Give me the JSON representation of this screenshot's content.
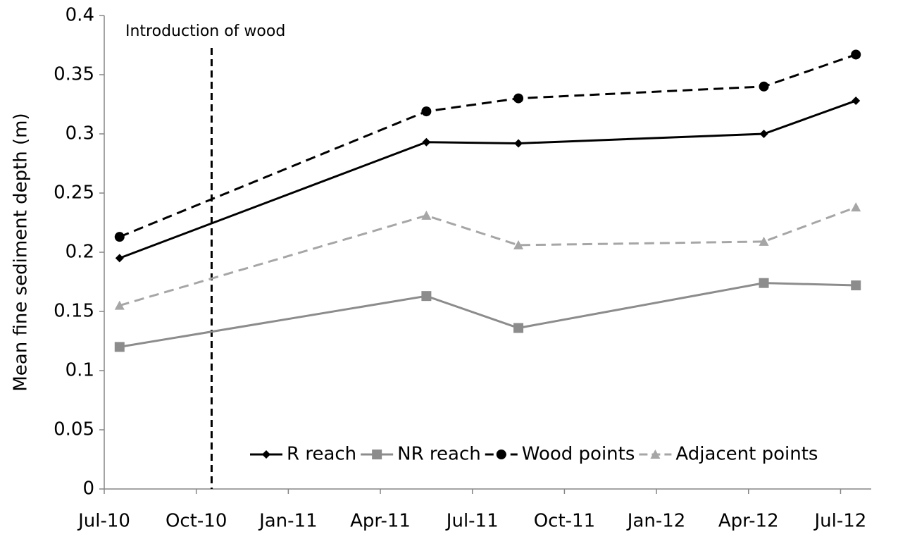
{
  "chart_data": {
    "type": "line",
    "y_label": "Mean fine sediment depth (m)",
    "annotation": {
      "text": "Introduction of wood",
      "x": "2010-10"
    },
    "x": [
      "2010-07",
      "2011-05",
      "2011-08",
      "2012-04",
      "2012-07"
    ],
    "xlim": [
      "2010-07",
      "2012-08"
    ],
    "xticks": [
      {
        "value": "2010-07",
        "label": "Jul-10"
      },
      {
        "value": "2010-10",
        "label": "Oct-10"
      },
      {
        "value": "2011-01",
        "label": "Jan-11"
      },
      {
        "value": "2011-04",
        "label": "Apr-11"
      },
      {
        "value": "2011-07",
        "label": "Jul-11"
      },
      {
        "value": "2011-10",
        "label": "Oct-11"
      },
      {
        "value": "2012-01",
        "label": "Jan-12"
      },
      {
        "value": "2012-04",
        "label": "Apr-12"
      },
      {
        "value": "2012-07",
        "label": "Jul-12"
      }
    ],
    "ylim": [
      0,
      0.4
    ],
    "yticks": [
      0,
      0.05,
      0.1,
      0.15,
      0.2,
      0.25,
      0.3,
      0.35,
      0.4
    ],
    "legend": "bottom-right",
    "series": [
      {
        "name": "R reach",
        "color": "#000000",
        "dashed": false,
        "marker": "diamond",
        "values": [
          0.195,
          0.293,
          0.292,
          0.3,
          0.328
        ]
      },
      {
        "name": "NR reach",
        "color": "#8c8c8c",
        "dashed": false,
        "marker": "square",
        "values": [
          0.12,
          0.163,
          0.136,
          0.174,
          0.172
        ]
      },
      {
        "name": "Wood points",
        "color": "#000000",
        "dashed": true,
        "marker": "circle",
        "values": [
          0.213,
          0.319,
          0.33,
          0.34,
          0.367
        ]
      },
      {
        "name": "Adjacent points",
        "color": "#a6a6a6",
        "dashed": true,
        "marker": "triangle",
        "values": [
          0.155,
          0.231,
          0.206,
          0.209,
          0.238
        ]
      }
    ]
  }
}
